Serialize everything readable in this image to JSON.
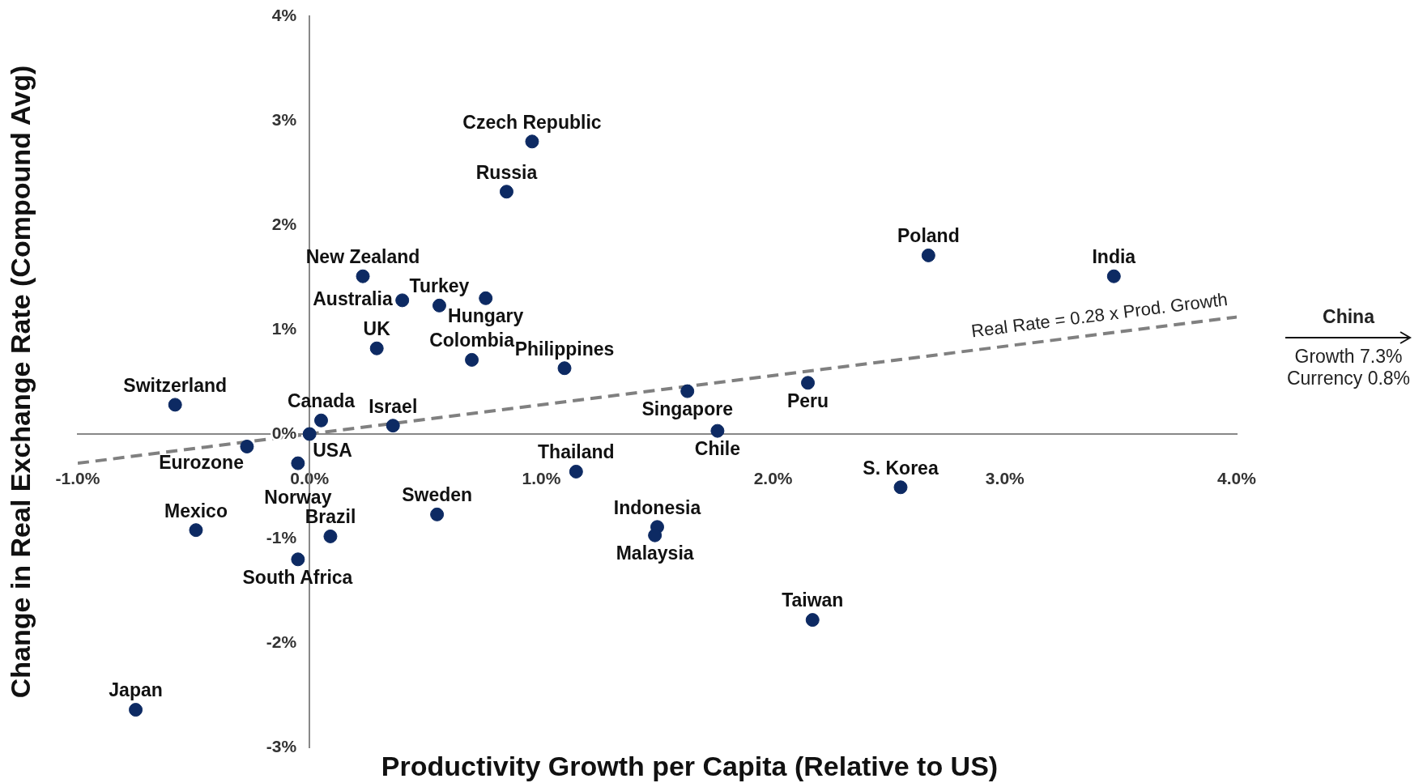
{
  "chart_data": {
    "type": "scatter",
    "xlabel": "Productivity Growth per Capita (Relative to US)",
    "ylabel": "Change in Real Exchange Rate (Compound Avg)",
    "xlim": [
      -1,
      4
    ],
    "ylim": [
      -3,
      4
    ],
    "xticks": [
      {
        "value": -1,
        "label": "-1.0%"
      },
      {
        "value": 0,
        "label": "0.0%"
      },
      {
        "value": 1,
        "label": "1.0%"
      },
      {
        "value": 2,
        "label": "2.0%"
      },
      {
        "value": 3,
        "label": "3.0%"
      },
      {
        "value": 4,
        "label": "4.0%"
      }
    ],
    "yticks": [
      {
        "value": -3,
        "label": "-3%"
      },
      {
        "value": -2,
        "label": "-2%"
      },
      {
        "value": -1,
        "label": "-1%"
      },
      {
        "value": 0,
        "label": "0%"
      },
      {
        "value": 1,
        "label": "1%"
      },
      {
        "value": 2,
        "label": "2%"
      },
      {
        "value": 3,
        "label": "3%"
      },
      {
        "value": 4,
        "label": "4%"
      }
    ],
    "grid": false,
    "legend": false,
    "marker": "circle",
    "series": [
      {
        "color": "#0d2a63",
        "x": [
          0.96,
          0.85,
          2.67,
          3.47,
          0.23,
          0.4,
          0.56,
          0.76,
          0.29,
          0.7,
          1.1,
          1.63,
          2.15,
          -0.58,
          0.05,
          0.36,
          0,
          1.76,
          -0.27,
          -0.05,
          1.15,
          2.55,
          0.55,
          -0.49,
          0.09,
          -0.05,
          1.5,
          1.49,
          2.17,
          -0.75
        ],
        "values": [
          2.8,
          2.32,
          1.71,
          1.51,
          1.51,
          1.28,
          1.23,
          1.3,
          0.82,
          0.71,
          0.63,
          0.41,
          0.49,
          0.28,
          0.13,
          0.08,
          0,
          0.03,
          -0.12,
          -0.28,
          -0.36,
          -0.51,
          -0.77,
          -0.92,
          -0.98,
          -1.2,
          -0.89,
          -0.97,
          -1.78,
          -2.64
        ]
      },
      {
        "type": "line",
        "name": "Real Rate = 0.28 x Prod. Growth",
        "color": "#808080",
        "line_style": "dashed",
        "marker": "none",
        "x": [
          -1,
          4
        ],
        "values": [
          -0.28,
          1.12
        ]
      }
    ],
    "annotations": [
      {
        "text": "Czech Republic",
        "x": 0.96,
        "y": 2.8
      },
      {
        "text": "Russia",
        "x": 0.85,
        "y": 2.32
      },
      {
        "text": "Poland",
        "x": 2.67,
        "y": 1.71
      },
      {
        "text": "India",
        "x": 3.47,
        "y": 1.51
      },
      {
        "text": "New Zealand",
        "x": 0.23,
        "y": 1.51
      },
      {
        "text": "Australia",
        "x": 0.4,
        "y": 1.28
      },
      {
        "text": "Turkey",
        "x": 0.56,
        "y": 1.23
      },
      {
        "text": "Hungary",
        "x": 0.76,
        "y": 1.3
      },
      {
        "text": "UK",
        "x": 0.29,
        "y": 0.82
      },
      {
        "text": "Colombia",
        "x": 0.7,
        "y": 0.71
      },
      {
        "text": "Philippines",
        "x": 1.1,
        "y": 0.63
      },
      {
        "text": "Singapore",
        "x": 1.63,
        "y": 0.41
      },
      {
        "text": "Peru",
        "x": 2.15,
        "y": 0.49
      },
      {
        "text": "Switzerland",
        "x": -0.58,
        "y": 0.28
      },
      {
        "text": "Canada",
        "x": 0.05,
        "y": 0.13
      },
      {
        "text": "Israel",
        "x": 0.36,
        "y": 0.08
      },
      {
        "text": "USA",
        "x": 0,
        "y": 0
      },
      {
        "text": "Chile",
        "x": 1.76,
        "y": 0.03
      },
      {
        "text": "Eurozone",
        "x": -0.27,
        "y": -0.12
      },
      {
        "text": "Norway",
        "x": -0.05,
        "y": -0.28
      },
      {
        "text": "Thailand",
        "x": 1.15,
        "y": -0.36
      },
      {
        "text": "S. Korea",
        "x": 2.55,
        "y": -0.51
      },
      {
        "text": "Sweden",
        "x": 0.55,
        "y": -0.77
      },
      {
        "text": "Mexico",
        "x": -0.49,
        "y": -0.92
      },
      {
        "text": "Brazil",
        "x": 0.09,
        "y": -0.98
      },
      {
        "text": "South Africa",
        "x": -0.05,
        "y": -1.2
      },
      {
        "text": "Indonesia",
        "x": 1.5,
        "y": -0.89
      },
      {
        "text": "Malaysia",
        "x": 1.49,
        "y": -0.97
      },
      {
        "text": "Taiwan",
        "x": 2.17,
        "y": -1.78
      },
      {
        "text": "Japan",
        "x": -0.75,
        "y": -2.64
      },
      "China",
      "Growth 7.3%",
      "Currency 0.8%"
    ]
  }
}
